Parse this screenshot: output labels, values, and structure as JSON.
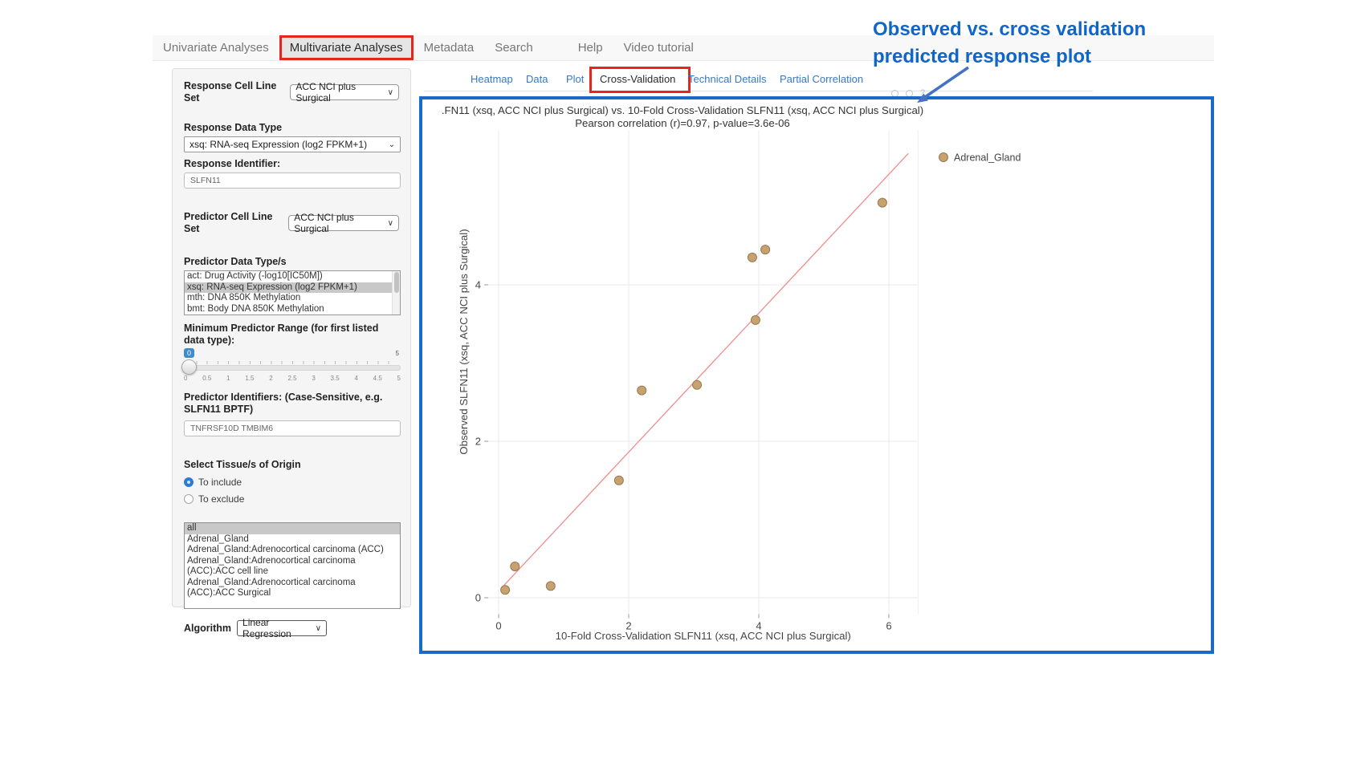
{
  "colors": {
    "accent_red": "#e7251f",
    "frame_blue": "#1a6bc7",
    "link_blue": "#3878c0",
    "annotation_blue": "#1065c9",
    "arrow_blue": "#4472c4"
  },
  "annotation": {
    "line1": "Observed vs. cross validation",
    "line2": "predicted response plot"
  },
  "nav": {
    "items": [
      "Univariate Analyses",
      "Multivariate Analyses",
      "Metadata",
      "Search",
      "Help",
      "Video tutorial"
    ],
    "active": "Multivariate Analyses"
  },
  "tabs": {
    "items": [
      "Heatmap",
      "Data",
      "Plot",
      "Cross-Validation",
      "Technical Details",
      "Partial Correlation"
    ],
    "active": "Cross-Validation"
  },
  "sidebar": {
    "response_cell_line_set": {
      "label": "Response Cell Line Set",
      "value": "ACC NCI plus Surgical"
    },
    "response_data_type": {
      "label": "Response Data Type",
      "value": "xsq: RNA-seq Expression (log2 FPKM+1)"
    },
    "response_identifier": {
      "label": "Response Identifier:",
      "value": "SLFN11"
    },
    "predictor_cell_line_set": {
      "label": "Predictor Cell Line Set",
      "value": "ACC NCI plus Surgical"
    },
    "predictor_data_types": {
      "label": "Predictor Data Type/s",
      "options": [
        "act: Drug Activity (-log10[IC50M])",
        "xsq: RNA-seq Expression (log2 FPKM+1)",
        "mth: DNA 850K Methylation",
        "bmt: Body DNA 850K Methylation"
      ],
      "selected": "xsq: RNA-seq Expression (log2 FPKM+1)"
    },
    "min_predictor_range": {
      "label": "Minimum Predictor Range (for first listed data type):",
      "value": "0",
      "max_label": "5",
      "ticks": [
        "0",
        "0.5",
        "1",
        "1.5",
        "2",
        "2.5",
        "3",
        "3.5",
        "4",
        "4.5",
        "5"
      ]
    },
    "predictor_identifiers": {
      "label": "Predictor Identifiers: (Case-Sensitive, e.g. SLFN11 BPTF)",
      "value": "TNFRSF10D TMBIM6"
    },
    "tissue_origin": {
      "label": "Select Tissue/s of Origin",
      "options": [
        "To include",
        "To exclude"
      ],
      "selected": "To include"
    },
    "tissue_list": {
      "options": [
        "all",
        "Adrenal_Gland",
        "Adrenal_Gland:Adrenocortical carcinoma (ACC)",
        "Adrenal_Gland:Adrenocortical carcinoma (ACC):ACC cell line",
        "Adrenal_Gland:Adrenocortical carcinoma (ACC):ACC Surgical"
      ],
      "selected": "all"
    },
    "algorithm": {
      "label": "Algorithm",
      "value": "Linear Regression"
    }
  },
  "chart_data": {
    "type": "scatter",
    "title": ".FN11 (xsq, ACC NCI plus Surgical) vs. 10-Fold Cross-Validation SLFN11 (xsq, ACC NCI plus Surgical)",
    "subtitle": "Pearson correlation (r)=0.97, p-value=3.6e-06",
    "xlabel": "10-Fold Cross-Validation SLFN11 (xsq, ACC NCI plus Surgical)",
    "ylabel": "Observed SLFN11 (xsq, ACC NCI plus Surgical)",
    "xlim": [
      -0.16,
      6.45
    ],
    "ylim": [
      -0.21,
      5.97
    ],
    "xticks": [
      0,
      2,
      4,
      6
    ],
    "yticks": [
      0,
      2,
      4
    ],
    "grid": true,
    "legend": {
      "label": "Adrenal_Gland",
      "position": "top-right"
    },
    "series": [
      {
        "name": "Adrenal_Gland",
        "marker_color": "#c7a26f",
        "marker_border": "#97794f",
        "points": [
          [
            0.1,
            0.1
          ],
          [
            0.25,
            0.4
          ],
          [
            0.8,
            0.15
          ],
          [
            1.85,
            1.5
          ],
          [
            2.2,
            2.65
          ],
          [
            3.05,
            2.72
          ],
          [
            3.9,
            4.35
          ],
          [
            4.1,
            4.45
          ],
          [
            3.95,
            3.55
          ],
          [
            5.9,
            5.05
          ]
        ]
      }
    ],
    "regression_line": {
      "x": [
        0.05,
        6.3
      ],
      "y": [
        0.13,
        5.68
      ],
      "color": "#f08c8c"
    },
    "stats": {
      "pearson_r": 0.97,
      "p_value": "3.6e-06"
    }
  }
}
